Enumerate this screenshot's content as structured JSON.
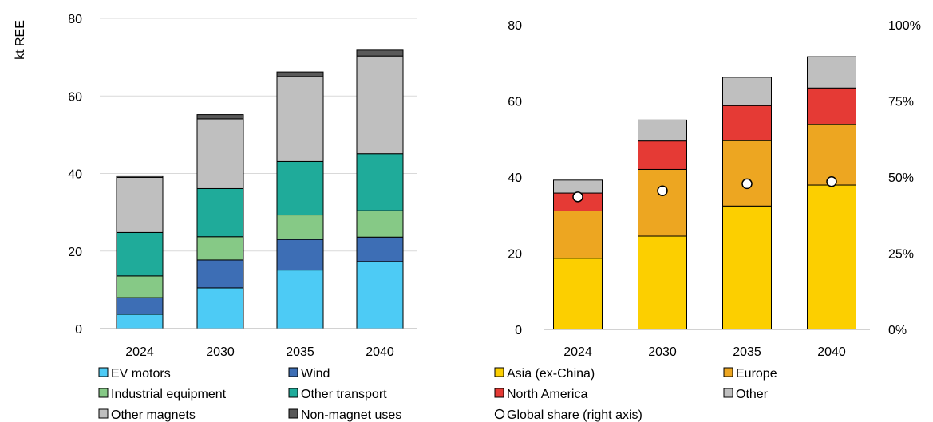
{
  "colors": {
    "ev_motors": "#4dcbf5",
    "wind": "#3d6eb5",
    "industrial_equipment": "#86c986",
    "other_transport": "#1fab9a",
    "other_magnets": "#bfbfbf",
    "non_magnet_uses": "#595959",
    "asia_ex_china": "#fccf00",
    "europe": "#eda621",
    "north_america": "#e53a35",
    "other": "#bfbfbf",
    "gridline": "#d9d9d9"
  },
  "chart_data": [
    {
      "type": "bar",
      "stacked": true,
      "ylabel": "kt REE",
      "ylim": [
        0,
        80
      ],
      "yticks": [
        0,
        20,
        40,
        60,
        80
      ],
      "categories": [
        "2024",
        "2030",
        "2035",
        "2040"
      ],
      "grid": true,
      "legend_position": "bottom",
      "series": [
        {
          "name": "EV motors",
          "color_key": "ev_motors",
          "values": [
            3.7,
            10.5,
            15.1,
            17.3
          ]
        },
        {
          "name": "Wind",
          "color_key": "wind",
          "values": [
            4.3,
            7.2,
            7.9,
            6.3
          ]
        },
        {
          "name": "Industrial equipment",
          "color_key": "industrial_equipment",
          "values": [
            5.6,
            6.0,
            6.3,
            6.8
          ]
        },
        {
          "name": "Other transport",
          "color_key": "other_transport",
          "values": [
            11.2,
            12.4,
            13.8,
            14.7
          ]
        },
        {
          "name": "Other magnets",
          "color_key": "other_magnets",
          "values": [
            14.2,
            18.0,
            21.9,
            25.2
          ]
        },
        {
          "name": "Non-magnet uses",
          "color_key": "non_magnet_uses",
          "values": [
            0.4,
            1.1,
            1.2,
            1.5
          ]
        }
      ]
    },
    {
      "type": "bar",
      "stacked": true,
      "ylim": [
        0,
        80
      ],
      "yticks": [
        0,
        20,
        40,
        60,
        80
      ],
      "y2lim": [
        0,
        100
      ],
      "y2ticks": [
        "0%",
        "25%",
        "50%",
        "75%",
        "100%"
      ],
      "categories": [
        "2024",
        "2030",
        "2035",
        "2040"
      ],
      "grid": false,
      "legend_position": "bottom",
      "series": [
        {
          "name": "Asia (ex-China)",
          "color_key": "asia_ex_china",
          "values": [
            18.7,
            24.5,
            32.4,
            37.9
          ]
        },
        {
          "name": "Europe",
          "color_key": "europe",
          "values": [
            12.4,
            17.5,
            17.2,
            15.9
          ]
        },
        {
          "name": "North America",
          "color_key": "north_america",
          "values": [
            4.7,
            7.5,
            9.2,
            9.6
          ]
        },
        {
          "name": "Other",
          "color_key": "other",
          "values": [
            3.4,
            5.5,
            7.4,
            8.2
          ]
        }
      ],
      "markers": {
        "name": "Global share (right axis)",
        "axis": "right",
        "values_percent": [
          43.5,
          45.5,
          47.8,
          48.5
        ]
      }
    }
  ]
}
